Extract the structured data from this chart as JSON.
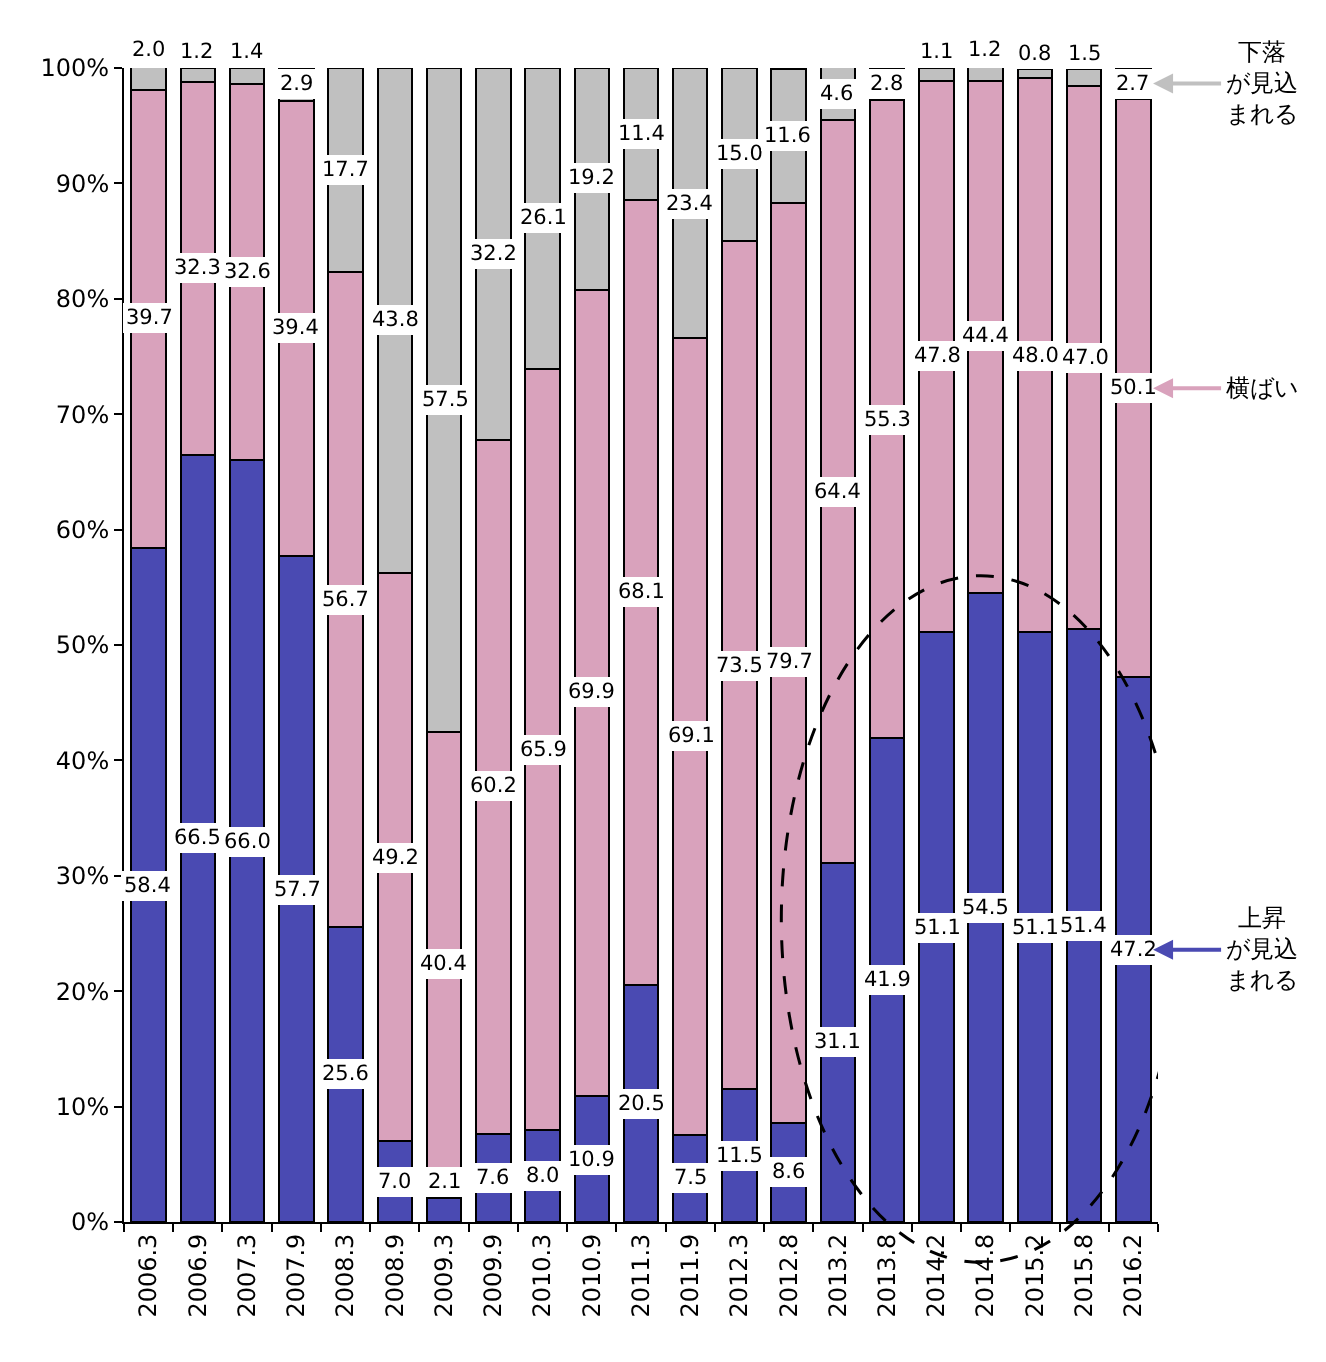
{
  "chart_data": {
    "type": "bar",
    "stacked": true,
    "legend": "right",
    "categories": [
      "2006.3",
      "2006.9",
      "2007.3",
      "2007.9",
      "2008.3",
      "2008.9",
      "2009.3",
      "2009.9",
      "2010.3",
      "2010.9",
      "2011.3",
      "2011.9",
      "2012.3",
      "2012.8",
      "2013.2",
      "2013.8",
      "2014.2",
      "2014.8",
      "2015.2",
      "2015.8",
      "2016.2"
    ],
    "series": [
      {
        "name": "上昇が見込まれる",
        "color": "#4a4ab2",
        "values": [
          58.4,
          66.5,
          66.0,
          57.7,
          25.6,
          7.0,
          2.1,
          7.6,
          8.0,
          10.9,
          20.5,
          7.5,
          11.5,
          8.6,
          31.1,
          41.9,
          51.1,
          54.5,
          51.1,
          51.4,
          47.2
        ],
        "value_labels": [
          "58.4",
          "66.5",
          "66.0",
          "57.7",
          "25.6",
          "7.0",
          "2.1",
          "7.6",
          "8.0",
          "10.9",
          "20.5",
          "7.5",
          "11.5",
          "8.6",
          "31.1",
          "41.9",
          "51.1",
          "54.5",
          "51.1",
          "51.4",
          "47.2"
        ]
      },
      {
        "name": "横ばい",
        "color": "#d9a2bc",
        "values": [
          39.7,
          32.3,
          32.6,
          39.4,
          56.7,
          49.2,
          40.4,
          60.2,
          65.9,
          69.9,
          68.1,
          69.1,
          73.5,
          79.7,
          64.4,
          55.3,
          47.8,
          44.4,
          48.0,
          47.0,
          50.1
        ],
        "value_labels": [
          "39.7",
          "32.3",
          "32.6",
          "39.4",
          "56.7",
          "49.2",
          "40.4",
          "60.2",
          "65.9",
          "69.9",
          "68.1",
          "69.1",
          "73.5",
          "79.7",
          "64.4",
          "55.3",
          "47.8",
          "44.4",
          "48.0",
          "47.0",
          "50.1"
        ]
      },
      {
        "name": "下落が見込まれる",
        "color": "#c0c0c0",
        "values": [
          2.0,
          1.2,
          1.4,
          2.9,
          17.7,
          43.8,
          57.5,
          32.2,
          26.1,
          19.2,
          11.4,
          23.4,
          15.0,
          11.6,
          4.6,
          2.8,
          1.1,
          1.2,
          0.8,
          1.5,
          2.7
        ],
        "value_labels": [
          "2.0",
          "1.2",
          "1.4",
          "2.9",
          "17.7",
          "43.8",
          "57.5",
          "32.2",
          "26.1",
          "19.2",
          "11.4",
          "23.4",
          "15.0",
          "11.6",
          "4.6",
          "2.8",
          "1.1",
          "1.2",
          "0.8",
          "1.5",
          "2.7"
        ]
      }
    ],
    "ylim": [
      0,
      100
    ],
    "yticks": [
      {
        "value": 0,
        "label": "0%"
      },
      {
        "value": 10,
        "label": "10%"
      },
      {
        "value": 20,
        "label": "20%"
      },
      {
        "value": 30,
        "label": "30%"
      },
      {
        "value": 40,
        "label": "40%"
      },
      {
        "value": 50,
        "label": "50%"
      },
      {
        "value": 60,
        "label": "60%"
      },
      {
        "value": 70,
        "label": "70%"
      },
      {
        "value": 80,
        "label": "80%"
      },
      {
        "value": 90,
        "label": "90%"
      },
      {
        "value": 100,
        "label": "100%"
      }
    ]
  }
}
